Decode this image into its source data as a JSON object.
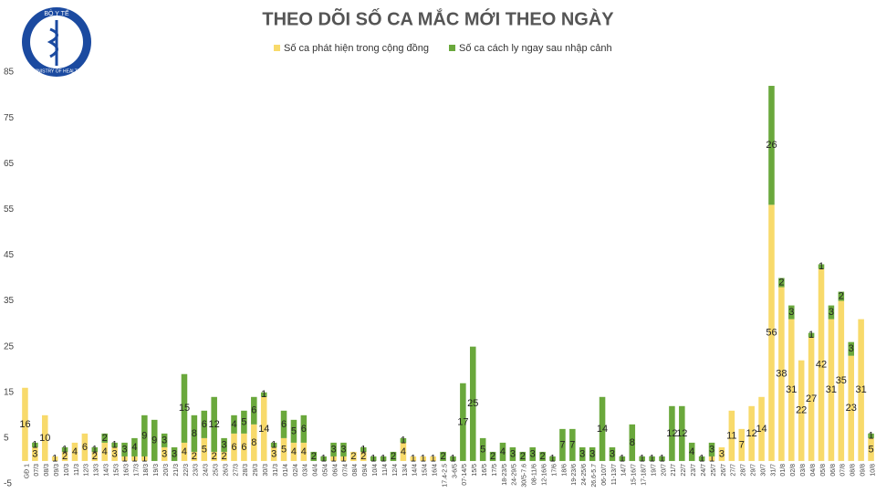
{
  "logo": {
    "top_text": "BỘ Y TẾ",
    "bottom_text": "MINISTRY OF HEALTH"
  },
  "chart_data": {
    "type": "stacked_bar",
    "title": "THEO DÕI SỐ CA MẮC MỚI THEO NGÀY",
    "categories": [
      "GĐ 1",
      "07/3",
      "08/3",
      "09/3",
      "10/3",
      "11/3",
      "12/3",
      "13/3",
      "14/3",
      "15/3",
      "16/3",
      "17/3",
      "18/3",
      "19/3",
      "20/3",
      "21/3",
      "22/3",
      "23/3",
      "24/3",
      "25/3",
      "26/3",
      "27/3",
      "28/3",
      "29/3",
      "30/3",
      "31/3",
      "01/4",
      "02/4",
      "03/4",
      "04/4",
      "05/4",
      "06/4",
      "07/4",
      "08/4",
      "09/4",
      "10/4",
      "11/4",
      "12/4",
      "13/4",
      "14/4",
      "15/4",
      "16/4",
      "17.4-2.5",
      "3-6/5",
      "07-14/5",
      "15/5",
      "16/5",
      "17/5",
      "18-23/5",
      "24-29/5",
      "30/5-7.6",
      "08-11/6",
      "12-16/6",
      "17/6",
      "18/6",
      "19-23/6",
      "24-25/6",
      "26.6-5.7",
      "06-10/7",
      "11-13/7",
      "14/7",
      "15-16/7",
      "17-18/7",
      "19/7",
      "20/7",
      "21/7",
      "22/7",
      "23/7",
      "24/7",
      "25/7",
      "26/7",
      "27/7",
      "28/7",
      "29/7",
      "30/7",
      "31/7",
      "01/8",
      "02/8",
      "03/8",
      "04/8",
      "05/8",
      "06/8",
      "07/8",
      "08/8",
      "09/8",
      "10/8"
    ],
    "series": [
      {
        "name": "Số ca phát hiện trong cộng đồng",
        "color": "#f8da6b",
        "values": [
          16,
          3,
          10,
          1,
          2,
          4,
          6,
          2,
          4,
          3,
          1,
          1,
          1,
          0,
          3,
          0,
          4,
          2,
          5,
          2,
          2,
          6,
          6,
          8,
          14,
          3,
          5,
          4,
          4,
          0,
          0,
          1,
          1,
          2,
          2,
          0,
          0,
          0,
          4,
          1,
          1,
          1,
          0,
          0,
          0,
          0,
          0,
          0,
          0,
          0,
          0,
          0,
          0,
          0,
          0,
          0,
          0,
          0,
          0,
          0,
          0,
          0,
          0,
          0,
          0,
          0,
          0,
          0,
          0,
          1,
          3,
          11,
          7,
          12,
          14,
          56,
          38,
          31,
          22,
          27,
          42,
          31,
          35,
          23,
          31,
          5
        ]
      },
      {
        "name": "Số ca cách ly ngay sau nhập cảnh",
        "color": "#6aa83c",
        "values": [
          0,
          1,
          0,
          0,
          1,
          0,
          0,
          1,
          2,
          1,
          3,
          4,
          9,
          9,
          3,
          3,
          15,
          8,
          6,
          12,
          3,
          4,
          5,
          6,
          1,
          1,
          6,
          5,
          6,
          2,
          1,
          3,
          3,
          0,
          1,
          1,
          1,
          2,
          1,
          0,
          0,
          0,
          2,
          1,
          17,
          25,
          5,
          2,
          4,
          3,
          2,
          3,
          2,
          1,
          7,
          7,
          3,
          3,
          14,
          3,
          1,
          8,
          1,
          1,
          1,
          12,
          12,
          4,
          1,
          3,
          0,
          0,
          0,
          0,
          0,
          26,
          2,
          3,
          0,
          1,
          1,
          3,
          2,
          3,
          0,
          1
        ]
      }
    ],
    "ylim": [
      -5,
      85
    ],
    "yticks": [
      -5,
      5,
      15,
      25,
      35,
      45,
      55,
      65,
      75,
      85
    ],
    "grid": false
  }
}
